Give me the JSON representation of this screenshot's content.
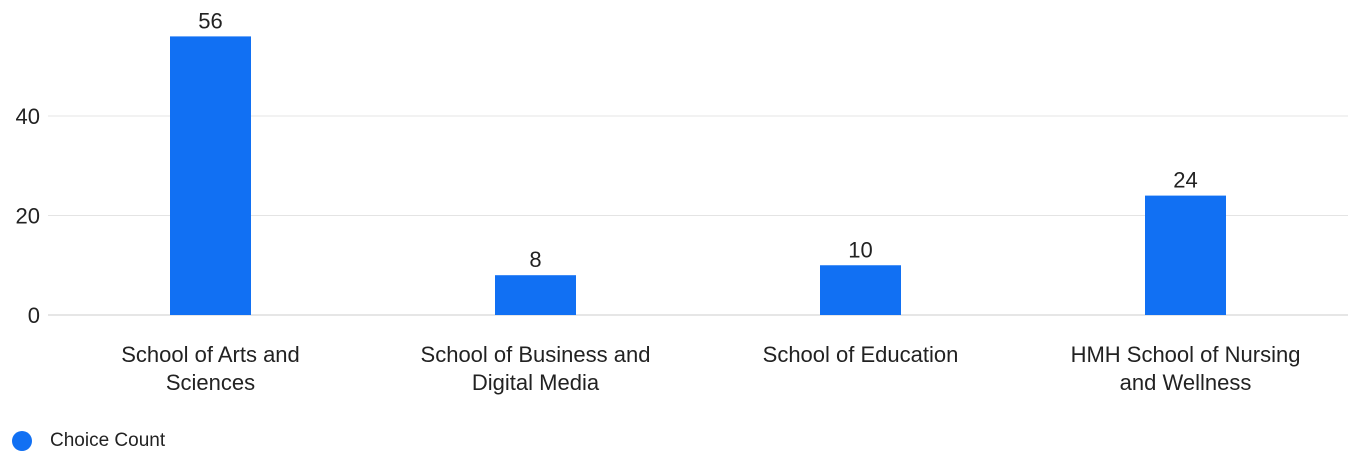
{
  "chart_data": {
    "type": "bar",
    "categories": [
      [
        "School of Arts and",
        "Sciences"
      ],
      [
        "School of Business and",
        "Digital Media"
      ],
      [
        "School of Education"
      ],
      [
        "HMH School of Nursing",
        "and Wellness"
      ]
    ],
    "series": [
      {
        "name": "Choice Count",
        "values": [
          56,
          8,
          10,
          24
        ],
        "color": "#1170f3"
      }
    ],
    "yticks": [
      0,
      20,
      40
    ],
    "ylim": [
      0,
      60
    ],
    "grid": true,
    "legend": "bottom-left",
    "title": "",
    "xlabel": "",
    "ylabel": ""
  }
}
